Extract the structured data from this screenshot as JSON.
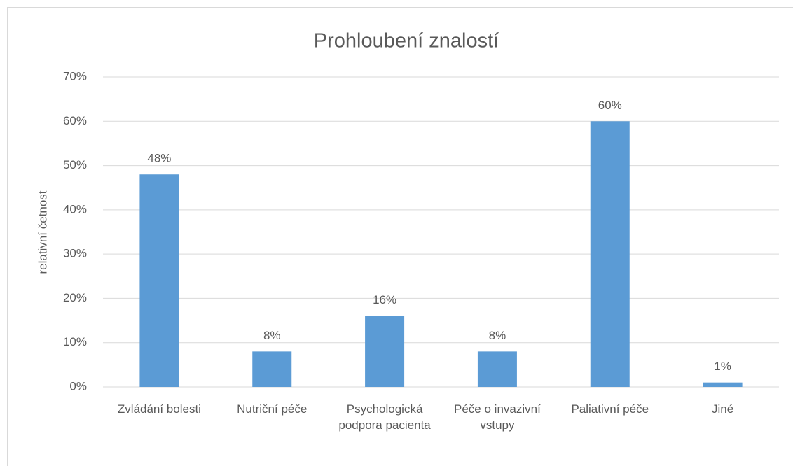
{
  "chart_data": {
    "type": "bar",
    "title": "Prohloubení znalostí",
    "y_label": "relativní četnost",
    "categories": [
      "Zvládání bolesti",
      "Nutriční péče",
      "Psychologická podpora pacienta",
      "Péče o invazivní vstupy",
      "Paliativní péče",
      "Jiné"
    ],
    "values": [
      48,
      8,
      16,
      8,
      60,
      1
    ],
    "value_labels": [
      "48%",
      "8%",
      "16%",
      "8%",
      "60%",
      "1%"
    ],
    "color": "#5b9bd5",
    "ylim": [
      0,
      70
    ],
    "yticks": [
      {
        "value": 0,
        "label": "0%"
      },
      {
        "value": 10,
        "label": "10%"
      },
      {
        "value": 20,
        "label": "20%"
      },
      {
        "value": 30,
        "label": "30%"
      },
      {
        "value": 40,
        "label": "40%"
      },
      {
        "value": 50,
        "label": "50%"
      },
      {
        "value": 60,
        "label": "60%"
      },
      {
        "value": 70,
        "label": "70%"
      }
    ],
    "grid": true
  }
}
